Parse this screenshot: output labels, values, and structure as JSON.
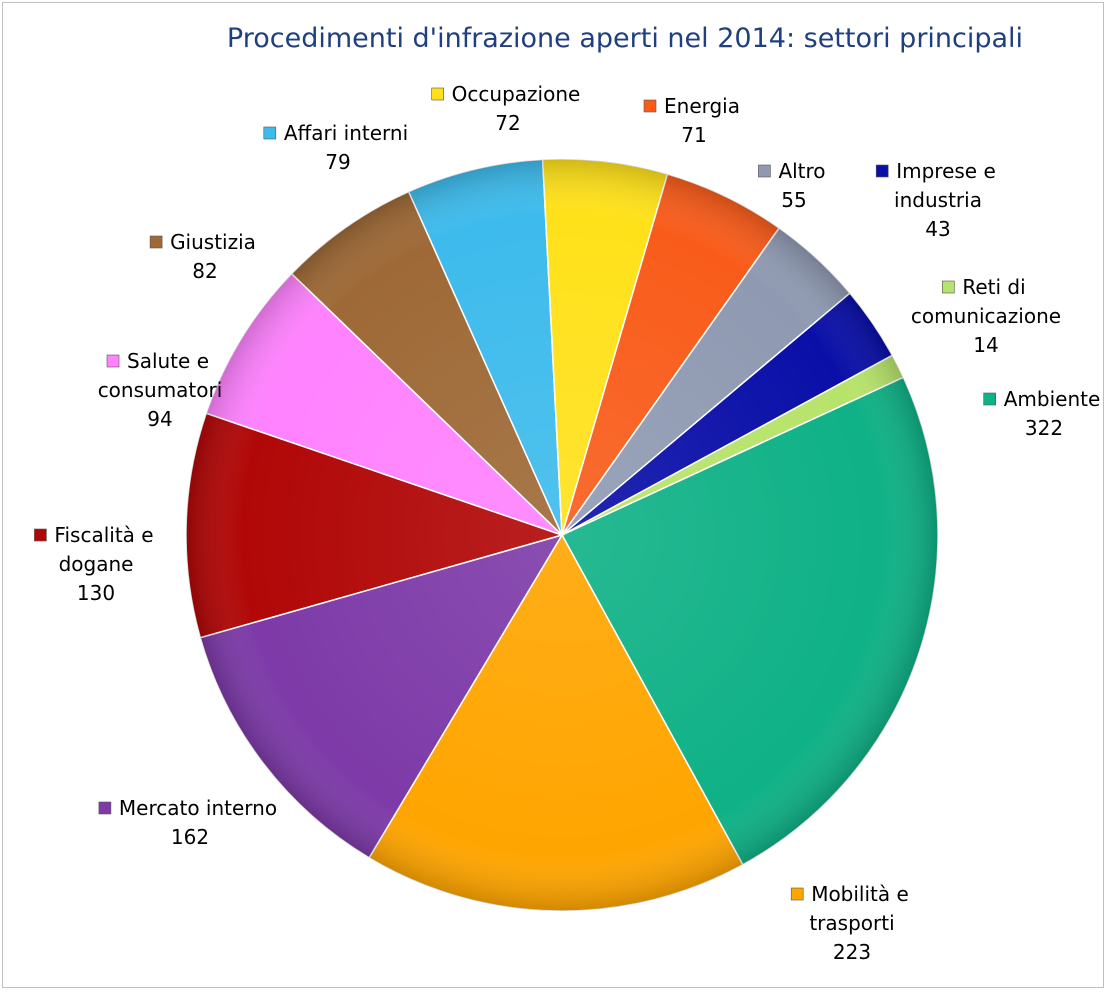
{
  "chart_data": {
    "type": "pie",
    "title": "Procedimenti d'infrazione aperti nel 2014: settori principali",
    "slices": [
      {
        "label": [
          "Ambiente"
        ],
        "value": 322,
        "value_text": "322",
        "color": "#0fb186"
      },
      {
        "label": [
          "Mobilità e",
          "trasporti"
        ],
        "value": 223,
        "value_text": "223",
        "color": "#ffa500"
      },
      {
        "label": [
          "Mercato interno"
        ],
        "value": 162,
        "value_text": "162",
        "color": "#7d3aa8"
      },
      {
        "label": [
          "Fiscalità e",
          "dogane"
        ],
        "value": 130,
        "value_text": "130",
        "color": "#b10707"
      },
      {
        "label": [
          "Salute e",
          "consumatori"
        ],
        "value": 94,
        "value_text": "94",
        "color": "#ff82ff"
      },
      {
        "label": [
          "Giustizia"
        ],
        "value": 82,
        "value_text": "82",
        "color": "#9e6936"
      },
      {
        "label": [
          "Affari interni"
        ],
        "value": 79,
        "value_text": "79",
        "color": "#3dbbec"
      },
      {
        "label": [
          "Occupazione"
        ],
        "value": 72,
        "value_text": "72",
        "color": "#ffe11a"
      },
      {
        "label": [
          "Energia"
        ],
        "value": 71,
        "value_text": "71",
        "color": "#f95c1a"
      },
      {
        "label": [
          "Altro"
        ],
        "value": 55,
        "value_text": "55",
        "color": "#8f9ab2"
      },
      {
        "label": [
          "Imprese e",
          "industria"
        ],
        "value": 43,
        "value_text": "43",
        "color": "#0a0fa8"
      },
      {
        "label": [
          "Reti di",
          "comunicazione"
        ],
        "value": 14,
        "value_text": "14",
        "color": "#b7e36b"
      }
    ]
  }
}
